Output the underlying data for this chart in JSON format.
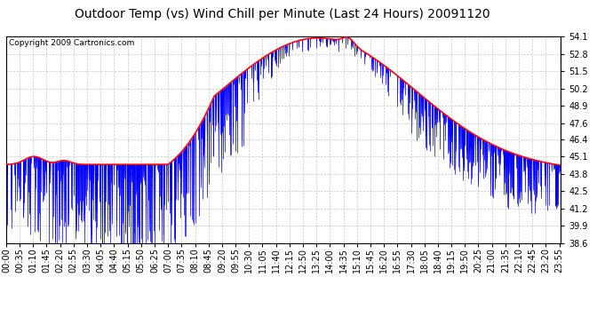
{
  "title": "Outdoor Temp (vs) Wind Chill per Minute (Last 24 Hours) 20091120",
  "copyright_text": "Copyright 2009 Cartronics.com",
  "y_ticks": [
    38.6,
    39.9,
    41.2,
    42.5,
    43.8,
    45.1,
    46.4,
    47.6,
    48.9,
    50.2,
    51.5,
    52.8,
    54.1
  ],
  "ylim": [
    38.6,
    54.1
  ],
  "x_tick_labels": [
    "00:00",
    "00:35",
    "01:10",
    "01:45",
    "02:20",
    "02:55",
    "03:30",
    "04:05",
    "04:40",
    "05:15",
    "05:50",
    "06:25",
    "07:00",
    "07:35",
    "08:10",
    "08:45",
    "09:20",
    "09:55",
    "10:30",
    "11:05",
    "11:40",
    "12:15",
    "12:50",
    "13:25",
    "14:00",
    "14:35",
    "15:10",
    "15:45",
    "16:20",
    "16:55",
    "17:30",
    "18:05",
    "18:40",
    "19:15",
    "19:50",
    "20:25",
    "21:00",
    "21:35",
    "22:10",
    "22:45",
    "23:20",
    "23:55"
  ],
  "red_line_color": "#ff0000",
  "blue_bar_color": "#0000ff",
  "bg_color": "#ffffff",
  "grid_color": "#c8c8c8",
  "title_fontsize": 10,
  "copyright_fontsize": 6.5,
  "tick_fontsize": 7,
  "seed": 12345
}
